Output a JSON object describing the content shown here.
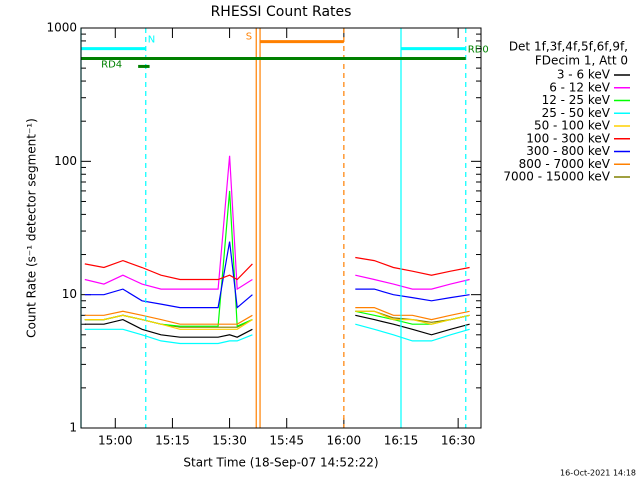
{
  "chart_data": {
    "type": "line",
    "title": "RHESSI Count Rates",
    "x_label": "Start Time (18-Sep-07 14:52:22)",
    "y_label": "Count Rate (s⁻¹ detector segment⁻¹)",
    "legend_header": [
      "Det 1f,3f,4f,5f,6f,9f,",
      "FDecim 1, Att 0"
    ],
    "footer": "16-Oct-2021 14:18",
    "log_y": true,
    "legend": "right",
    "xlim": [
      "14:51",
      "16:36"
    ],
    "xticks": [
      "15:00",
      "15:15",
      "15:30",
      "15:45",
      "16:00",
      "16:15",
      "16:30"
    ],
    "ylim": [
      1,
      1000
    ],
    "yticks": [
      1,
      10,
      100,
      1000
    ],
    "x": [
      "14:52",
      "14:57",
      "15:02",
      "15:07",
      "15:12",
      "15:17",
      "15:22",
      "15:27",
      "15:30",
      "15:32",
      "15:36",
      "15:50",
      "16:03",
      "16:08",
      "16:13",
      "16:18",
      "16:23",
      "16:28",
      "16:33"
    ],
    "series": [
      {
        "name": "7000 - 15000 keV",
        "color": "#808000",
        "values": [
          6.5,
          6.5,
          7,
          6.5,
          6,
          5.7,
          5.7,
          5.7,
          5.7,
          5.7,
          6.5,
          null,
          7.5,
          7.5,
          6.7,
          6.5,
          6.2,
          6.5,
          7
        ]
      },
      {
        "name": "3 - 6 keV",
        "color": "#000000",
        "values": [
          6,
          6,
          6.5,
          5.5,
          5,
          4.8,
          4.8,
          4.8,
          5,
          4.8,
          5.5,
          null,
          7,
          6.5,
          6,
          5.5,
          5,
          5.5,
          6
        ]
      },
      {
        "name": "25 - 50 keV",
        "color": "#00ffff",
        "values": [
          5.5,
          5.5,
          5.5,
          5,
          4.5,
          4.3,
          4.3,
          4.3,
          4.5,
          4.5,
          5,
          null,
          6,
          5.5,
          5,
          4.5,
          4.5,
          5,
          5.5
        ]
      },
      {
        "name": "12 - 25 keV",
        "color": "#00ff00",
        "values": [
          6.5,
          6.5,
          7,
          6.5,
          6,
          5.8,
          5.8,
          5.8,
          60,
          5.8,
          6.5,
          null,
          7.5,
          7,
          6.5,
          6,
          6,
          6.5,
          7
        ]
      },
      {
        "name": "50 - 100 keV",
        "color": "#ffd000",
        "values": [
          6.5,
          6.5,
          7,
          6.5,
          6,
          5.5,
          5.5,
          5.5,
          5.5,
          5.5,
          6.5,
          null,
          7.5,
          7.5,
          6.5,
          6.5,
          6,
          6.5,
          7
        ]
      },
      {
        "name": "800 - 7000 keV",
        "color": "#ff8000",
        "values": [
          7,
          7,
          7.5,
          7,
          6.5,
          6,
          6,
          6,
          6,
          6,
          7,
          null,
          8,
          8,
          7,
          7,
          6.5,
          7,
          7.5
        ]
      },
      {
        "name": "300 - 800 keV",
        "color": "#0000ff",
        "values": [
          10,
          10,
          11,
          9,
          8.5,
          8,
          8,
          8,
          25,
          8,
          10,
          null,
          11,
          11,
          10,
          9.5,
          9,
          9.5,
          10
        ]
      },
      {
        "name": "6 - 12 keV",
        "color": "#ff00ff",
        "values": [
          13,
          12,
          14,
          12,
          11,
          11,
          11,
          11,
          110,
          11,
          13,
          null,
          14,
          13,
          12,
          11,
          11,
          12,
          13
        ]
      },
      {
        "name": "100 - 300 keV",
        "color": "#ff0000",
        "values": [
          17,
          16,
          18,
          16,
          14,
          13,
          13,
          13,
          14,
          13,
          17,
          null,
          19,
          18,
          16,
          15,
          14,
          15,
          16
        ]
      }
    ],
    "legend_order": [
      1,
      7,
      3,
      2,
      4,
      8,
      6,
      5,
      0
    ],
    "flags": [
      {
        "label": "N",
        "color": "#00ffff",
        "start": "14:51",
        "end": "15:08",
        "level": 700
      },
      {
        "label": null,
        "color": "#00ffff",
        "start": "16:15",
        "end": "16:32",
        "level": 700
      },
      {
        "label": "RD0",
        "color": "#008000",
        "start": "14:51",
        "end": "16:32",
        "level": 590
      },
      {
        "label": "RD4",
        "color": "#008000",
        "start": "15:06",
        "end": "15:09",
        "level": 515
      },
      {
        "label": "S",
        "color": "#ff8000",
        "start": "15:38",
        "end": "16:00",
        "level": 790
      }
    ],
    "markers": [
      {
        "time": "14:51",
        "color": "#00ffff",
        "dashed": false
      },
      {
        "time": "15:08",
        "color": "#00ffff",
        "dashed": true
      },
      {
        "time": "15:37",
        "color": "#ff8000",
        "dashed": false
      },
      {
        "time": "15:38",
        "color": "#ff8000",
        "dashed": false
      },
      {
        "time": "16:00",
        "color": "#ff8000",
        "dashed": true
      },
      {
        "time": "16:15",
        "color": "#00ffff",
        "dashed": false
      },
      {
        "time": "16:32",
        "color": "#00ffff",
        "dashed": true
      }
    ]
  }
}
